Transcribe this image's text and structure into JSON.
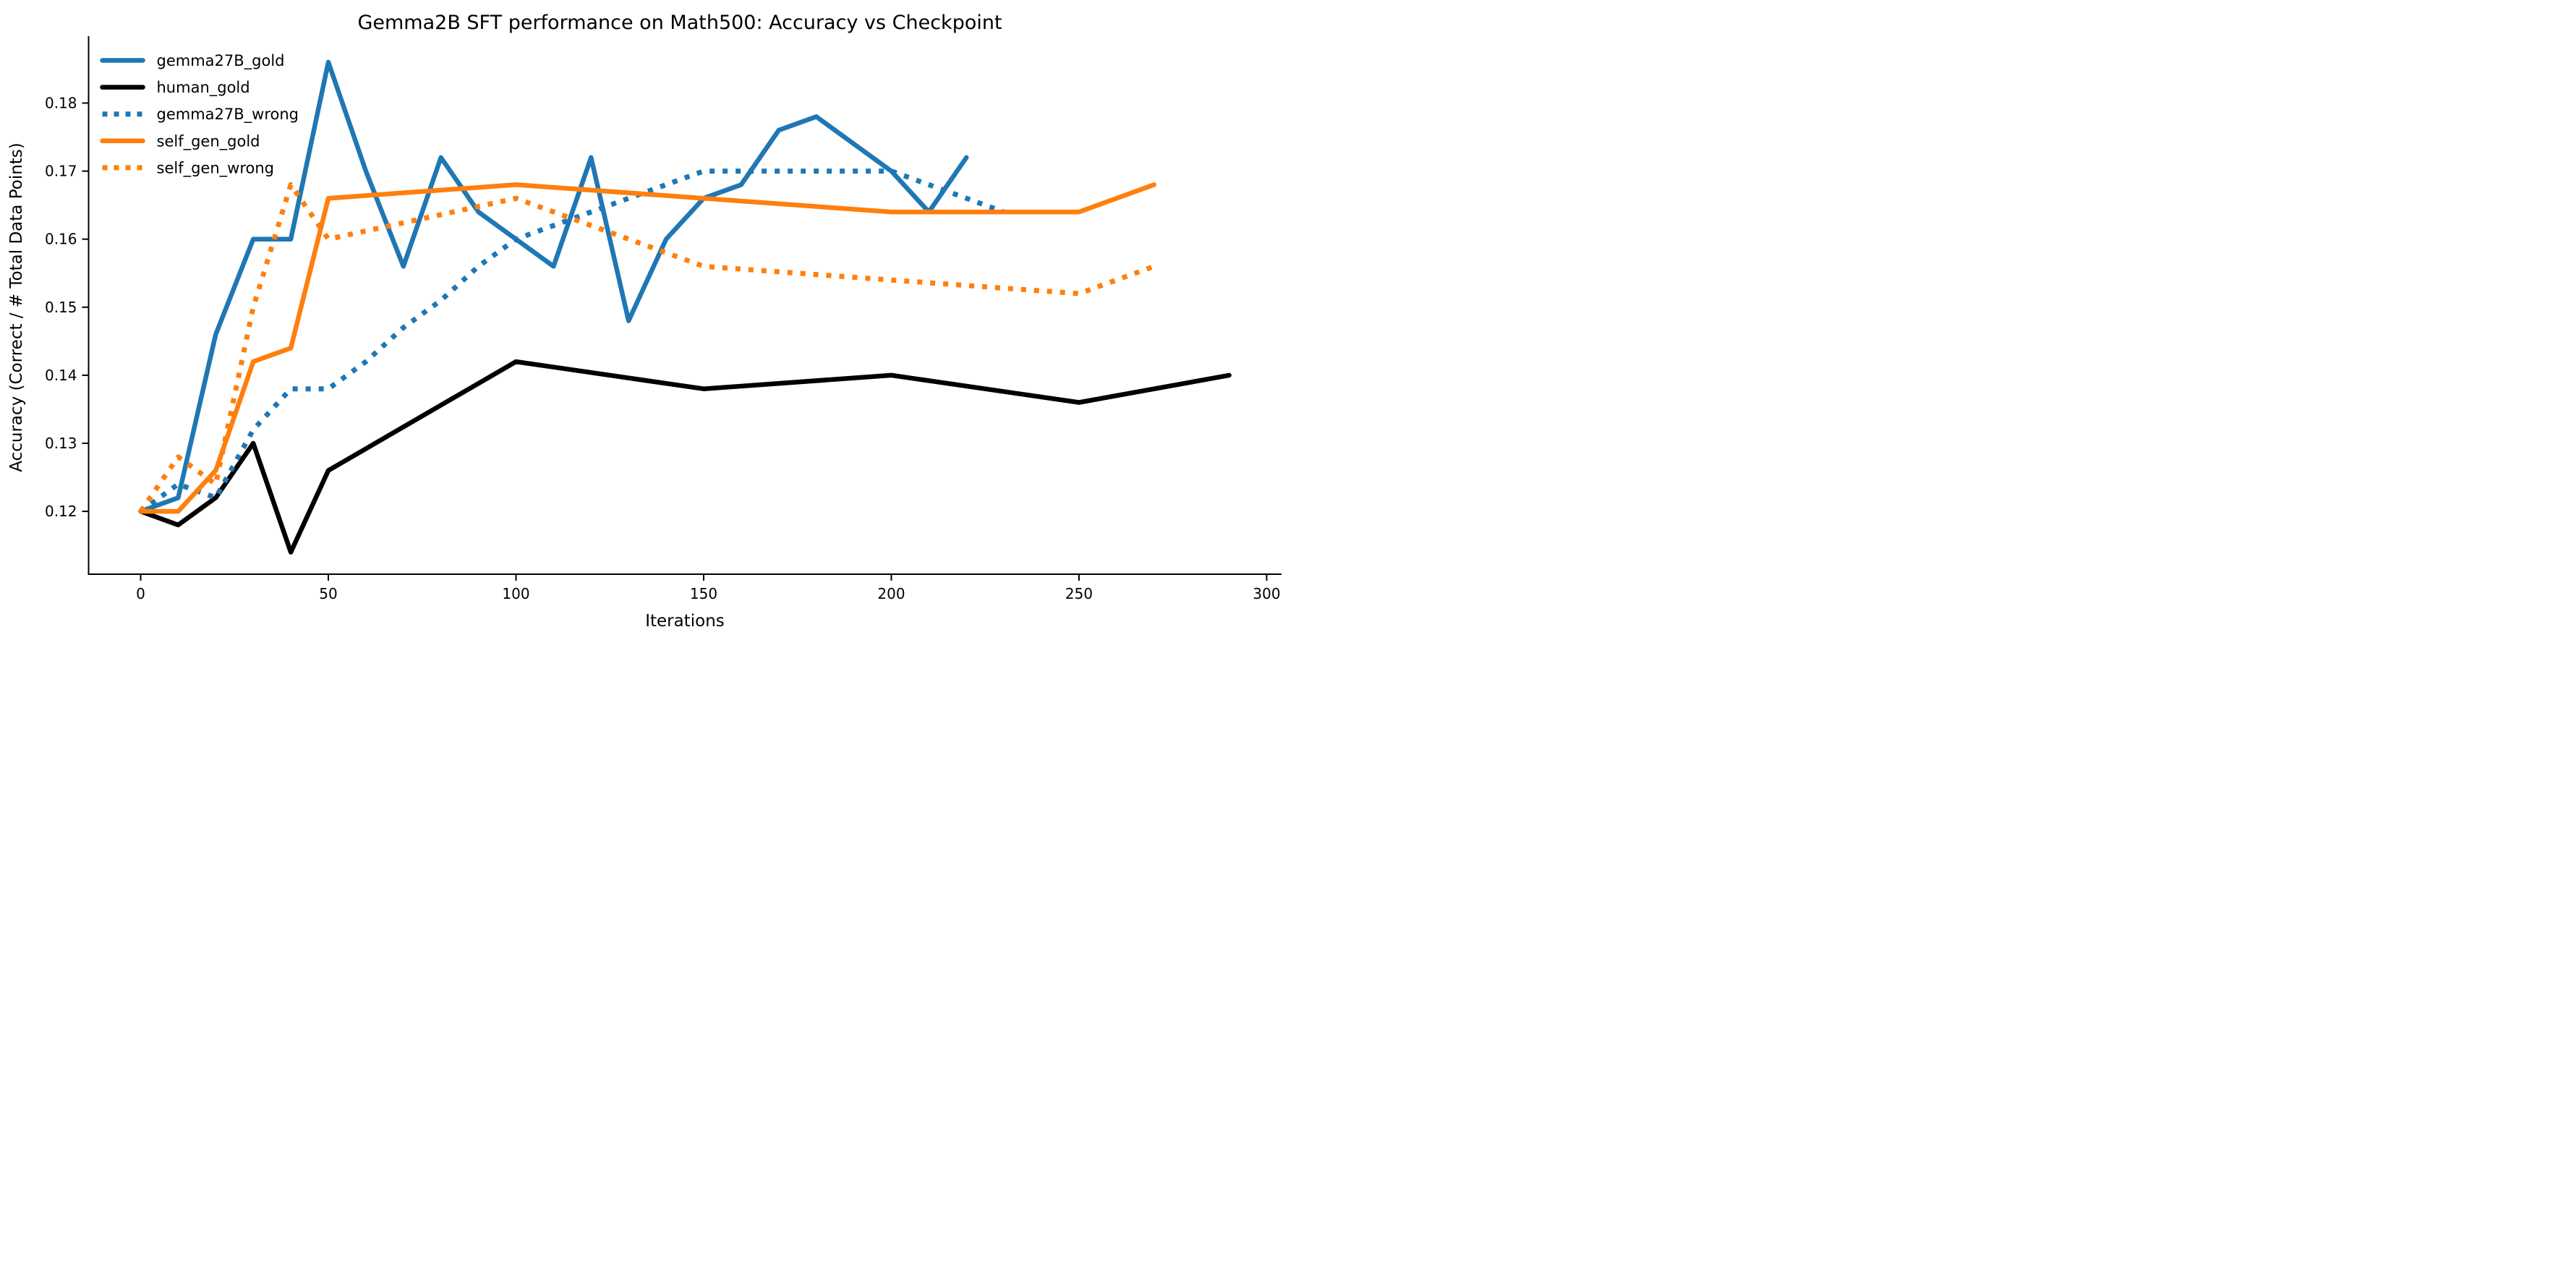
{
  "title": "Gemma2B SFT performance on Math500: Accuracy vs Checkpoint",
  "chart_data": {
    "type": "line",
    "title": "Gemma2B SFT performance on Math500: Accuracy vs Checkpoint",
    "xlabel": "Iterations",
    "ylabel": "Accuracy (Correct / # Total Data Points)",
    "xlim": [
      -14,
      304
    ],
    "ylim": [
      0.1108,
      0.1898
    ],
    "x_ticks": [
      0,
      50,
      100,
      150,
      200,
      250,
      300
    ],
    "y_ticks": [
      0.12,
      0.13,
      0.14,
      0.15,
      0.16,
      0.17,
      0.18
    ],
    "grid": false,
    "legend_position": "upper-left",
    "background": "#ffffff",
    "accent_colors": {
      "blue": "#1f77b4",
      "orange": "#ff7f0e",
      "black": "#000000"
    },
    "series": [
      {
        "name": "gemma27B_gold",
        "color": "#1f77b4",
        "style": "solid",
        "x": [
          0,
          10,
          20,
          30,
          40,
          50,
          60,
          70,
          80,
          90,
          100,
          110,
          120,
          130,
          140,
          150,
          160,
          170,
          180,
          190,
          200,
          210,
          220
        ],
        "y": [
          0.12,
          0.122,
          0.146,
          0.16,
          0.16,
          0.186,
          0.17,
          0.156,
          0.172,
          0.164,
          0.16,
          0.156,
          0.172,
          0.148,
          0.16,
          0.166,
          0.168,
          0.176,
          0.178,
          0.174,
          0.17,
          0.164,
          0.172
        ]
      },
      {
        "name": "human_gold",
        "color": "#000000",
        "style": "solid",
        "x": [
          0,
          10,
          20,
          30,
          40,
          50,
          100,
          150,
          200,
          250,
          290
        ],
        "y": [
          0.12,
          0.118,
          0.122,
          0.13,
          0.114,
          0.126,
          0.142,
          0.138,
          0.14,
          0.136,
          0.14
        ]
      },
      {
        "name": "gemma27B_wrong",
        "color": "#1f77b4",
        "style": "dotted",
        "x": [
          0,
          10,
          20,
          30,
          40,
          50,
          60,
          70,
          80,
          90,
          100,
          110,
          120,
          130,
          140,
          150,
          160,
          170,
          180,
          190,
          200,
          210,
          220,
          230
        ],
        "y": [
          0.12,
          0.124,
          0.122,
          0.132,
          0.138,
          0.138,
          0.142,
          0.147,
          0.151,
          0.156,
          0.16,
          0.162,
          0.164,
          0.166,
          0.168,
          0.17,
          0.17,
          0.17,
          0.17,
          0.17,
          0.17,
          0.168,
          0.166,
          0.164
        ]
      },
      {
        "name": "self_gen_gold",
        "color": "#ff7f0e",
        "style": "solid",
        "x": [
          0,
          10,
          20,
          30,
          40,
          50,
          100,
          150,
          200,
          250,
          270
        ],
        "y": [
          0.12,
          0.12,
          0.126,
          0.142,
          0.144,
          0.166,
          0.168,
          0.166,
          0.164,
          0.164,
          0.168
        ]
      },
      {
        "name": "self_gen_wrong",
        "color": "#ff7f0e",
        "style": "dotted",
        "x": [
          0,
          10,
          20,
          30,
          40,
          50,
          100,
          150,
          200,
          250,
          270
        ],
        "y": [
          0.12,
          0.128,
          0.124,
          0.15,
          0.168,
          0.16,
          0.166,
          0.156,
          0.154,
          0.152,
          0.156
        ]
      }
    ]
  }
}
